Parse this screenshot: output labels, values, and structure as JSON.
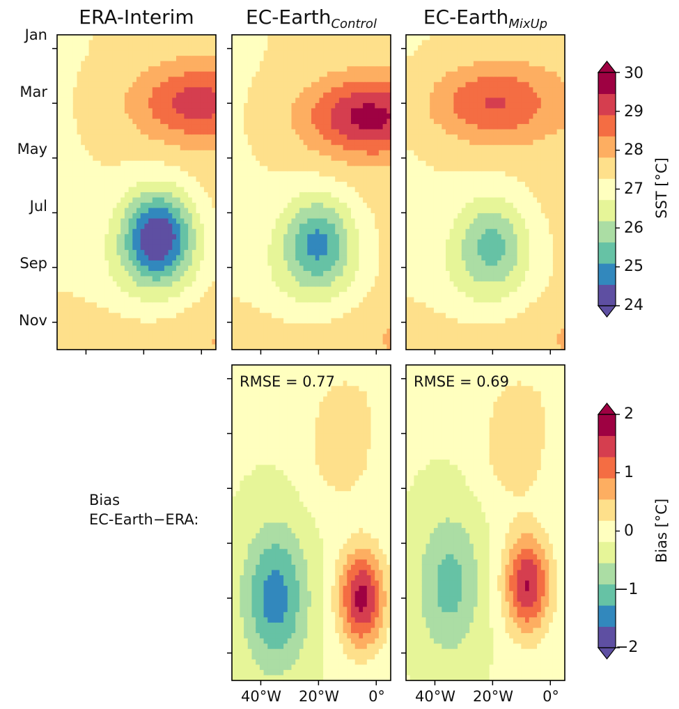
{
  "chart_data": [
    {
      "type": "heatmap",
      "title": "ERA-Interim",
      "colorbar": "sst",
      "yticks": [
        "Jan",
        "Mar",
        "May",
        "Jul",
        "Sep",
        "Nov"
      ],
      "xticks": [],
      "center": {
        "month": 7.8,
        "lon": -15
      },
      "min_value": 24.2,
      "warm_max": {
        "month": 3.0,
        "lon": -2,
        "value": 28.9
      }
    },
    {
      "type": "heatmap",
      "title_main": "EC-Earth",
      "title_sub": "Control",
      "colorbar": "sst",
      "yticks": [],
      "xticks": [],
      "center": {
        "month": 8.0,
        "lon": -20
      },
      "min_value": 25.3,
      "warm_max": {
        "month": 3.5,
        "lon": -3,
        "value": 29.4
      }
    },
    {
      "type": "heatmap",
      "title_main": "EC-Earth",
      "title_sub": "MixUp",
      "colorbar": "sst",
      "yticks": [],
      "xticks": [],
      "center": {
        "month": 8.0,
        "lon": -20
      },
      "min_value": 25.8,
      "warm_max": {
        "month": 3.0,
        "lon": -20,
        "value": 28.8
      }
    },
    {
      "type": "heatmap",
      "colorbar": "bias",
      "annotation": "RMSE = 0.77",
      "xticks": [
        "40°W",
        "20°W",
        "0°"
      ],
      "cold_center": {
        "month": 9.0,
        "lon": -35,
        "value": -1.3
      },
      "warm_center": {
        "month": 9.0,
        "lon": -5,
        "value": 1.9
      }
    },
    {
      "type": "heatmap",
      "colorbar": "bias",
      "annotation": "RMSE = 0.69",
      "xticks": [
        "40°W",
        "20°W",
        "0°"
      ],
      "cold_center": {
        "month": 8.5,
        "lon": -35,
        "value": -0.9
      },
      "warm_center": {
        "month": 8.5,
        "lon": -8,
        "value": 1.8
      }
    }
  ],
  "bias_label": [
    "Bias",
    "EC-Earth−ERA:"
  ],
  "colorbars": {
    "sst": {
      "label": "SST [°C]",
      "ticks": [
        "30",
        "29",
        "28",
        "27",
        "26",
        "25",
        "24"
      ],
      "range": [
        24,
        30
      ]
    },
    "bias": {
      "label": "Bias [°C]",
      "ticks": [
        "2",
        "1",
        "0",
        "−1",
        "−2"
      ],
      "range": [
        -2,
        2
      ]
    }
  },
  "colormap": "Spectral_r",
  "colors": [
    "#5e4fa2",
    "#3288bd",
    "#66c2a5",
    "#abdda4",
    "#e6f598",
    "#ffffbf",
    "#fee08b",
    "#fdae61",
    "#f46d43",
    "#d53e4f",
    "#9e0142"
  ]
}
